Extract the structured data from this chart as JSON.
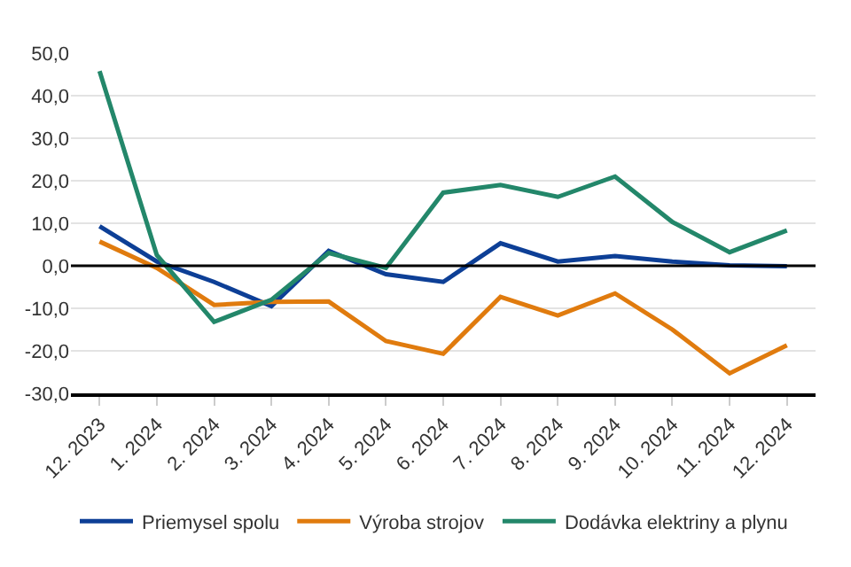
{
  "chart_data": {
    "type": "line",
    "categories": [
      "12. 2023",
      "1. 2024",
      "2. 2024",
      "3. 2024",
      "4. 2024",
      "5. 2024",
      "6. 2024",
      "7. 2024",
      "8. 2024",
      "9. 2024",
      "10. 2024",
      "11. 2024",
      "12. 2024"
    ],
    "series": [
      {
        "name": "Priemysel spolu",
        "color": "#0d3f96",
        "values": [
          9.3,
          1.0,
          -3.8,
          -9.5,
          3.5,
          -2.0,
          -3.8,
          5.3,
          1.0,
          2.3,
          1.0,
          0.1,
          -0.1
        ]
      },
      {
        "name": "Výroba strojov",
        "color": "#e07b0e",
        "values": [
          5.7,
          -0.5,
          -9.2,
          -8.5,
          -8.4,
          -17.7,
          -20.7,
          -7.3,
          -11.7,
          -6.5,
          -15.0,
          -25.3,
          -18.7
        ]
      },
      {
        "name": "Dodávka elektriny a plynu",
        "color": "#23876a",
        "values": [
          45.8,
          2.5,
          -13.2,
          -8.0,
          3.0,
          -0.5,
          17.2,
          19.0,
          16.2,
          21.0,
          10.3,
          3.2,
          8.3
        ]
      }
    ],
    "ylim": [
      -30,
      50
    ],
    "yticks": [
      {
        "value": -30,
        "label": "-30,0"
      },
      {
        "value": -20,
        "label": "-20,0"
      },
      {
        "value": -10,
        "label": "-10,0"
      },
      {
        "value": 0,
        "label": "0,0"
      },
      {
        "value": 10,
        "label": "10,0"
      },
      {
        "value": 20,
        "label": "20,0"
      },
      {
        "value": 30,
        "label": "30,0"
      },
      {
        "value": 40,
        "label": "40,0"
      },
      {
        "value": 50,
        "label": "50,0"
      }
    ],
    "ref_lines": [
      {
        "axis": "y",
        "value": 0,
        "color": "#000000"
      }
    ],
    "grid": "y",
    "legend": "bottom left",
    "marker": "none",
    "line_style": "solid"
  }
}
